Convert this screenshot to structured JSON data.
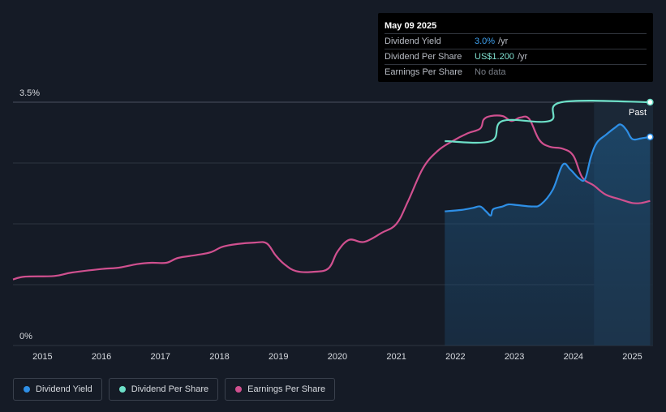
{
  "tooltip": {
    "date": "May 09 2025",
    "rows": [
      {
        "label": "Dividend Yield",
        "value": "3.0%",
        "unit": "/yr"
      },
      {
        "label": "Dividend Per Share",
        "value": "US$1.200",
        "unit": "/yr"
      },
      {
        "label": "Earnings Per Share",
        "value": "No data",
        "unit": ""
      }
    ]
  },
  "past_label": "Past",
  "legend": [
    {
      "label": "Dividend Yield",
      "color": "#2e8fe6"
    },
    {
      "label": "Dividend Per Share",
      "color": "#6de0c8"
    },
    {
      "label": "Earnings Per Share",
      "color": "#d0508f"
    }
  ],
  "colors": {
    "background": "#151b26",
    "dividend_yield": "#2e8fe6",
    "dividend_per_share": "#6de0c8",
    "earnings_per_share": "#d0508f",
    "gridline": "#2d3440"
  },
  "chart_data": {
    "type": "line",
    "x_ticks": [
      "2015",
      "2016",
      "2017",
      "2018",
      "2019",
      "2020",
      "2021",
      "2022",
      "2023",
      "2024",
      "2025"
    ],
    "y_tick_labels": [
      "3.5%",
      "0%"
    ],
    "ylim": [
      0,
      3.5
    ],
    "xlim": [
      2014.5,
      2025.35
    ],
    "grid": true,
    "legend_position": "bottom-left",
    "highlight": {
      "label": "Past",
      "from": 2024.35,
      "to": 2025.35
    },
    "series": [
      {
        "name": "Dividend Yield",
        "unit": "%",
        "area": true,
        "points": [
          [
            2021.82,
            1.93
          ],
          [
            2022.1,
            1.95
          ],
          [
            2022.3,
            1.98
          ],
          [
            2022.42,
            2.0
          ],
          [
            2022.52,
            1.93
          ],
          [
            2022.6,
            1.87
          ],
          [
            2022.64,
            1.96
          ],
          [
            2022.8,
            2.0
          ],
          [
            2022.9,
            2.03
          ],
          [
            2023.05,
            2.02
          ],
          [
            2023.3,
            2.0
          ],
          [
            2023.45,
            2.03
          ],
          [
            2023.65,
            2.24
          ],
          [
            2023.82,
            2.6
          ],
          [
            2023.95,
            2.53
          ],
          [
            2024.1,
            2.4
          ],
          [
            2024.2,
            2.4
          ],
          [
            2024.3,
            2.72
          ],
          [
            2024.4,
            2.92
          ],
          [
            2024.55,
            3.03
          ],
          [
            2024.7,
            3.13
          ],
          [
            2024.8,
            3.18
          ],
          [
            2024.9,
            3.1
          ],
          [
            2025.0,
            2.97
          ],
          [
            2025.15,
            2.98
          ],
          [
            2025.3,
            3.0
          ]
        ]
      },
      {
        "name": "Dividend Per Share",
        "unit": "US$",
        "points": [
          [
            2021.82,
            2.94
          ],
          [
            2022.6,
            2.94
          ],
          [
            2022.8,
            3.23
          ],
          [
            2023.6,
            3.23
          ],
          [
            2023.8,
            3.5
          ],
          [
            2025.3,
            3.5
          ]
        ]
      },
      {
        "name": "Earnings Per Share",
        "unit": "US$",
        "points": [
          [
            2014.5,
            0.95
          ],
          [
            2014.7,
            0.99
          ],
          [
            2015.2,
            1.0
          ],
          [
            2015.5,
            1.05
          ],
          [
            2016.0,
            1.1
          ],
          [
            2016.3,
            1.12
          ],
          [
            2016.6,
            1.17
          ],
          [
            2016.85,
            1.19
          ],
          [
            2017.1,
            1.19
          ],
          [
            2017.3,
            1.26
          ],
          [
            2017.6,
            1.3
          ],
          [
            2017.85,
            1.34
          ],
          [
            2018.05,
            1.42
          ],
          [
            2018.3,
            1.46
          ],
          [
            2018.6,
            1.48
          ],
          [
            2018.8,
            1.47
          ],
          [
            2018.95,
            1.3
          ],
          [
            2019.1,
            1.17
          ],
          [
            2019.3,
            1.07
          ],
          [
            2019.6,
            1.06
          ],
          [
            2019.85,
            1.11
          ],
          [
            2020.0,
            1.35
          ],
          [
            2020.2,
            1.52
          ],
          [
            2020.45,
            1.49
          ],
          [
            2020.75,
            1.62
          ],
          [
            2021.0,
            1.75
          ],
          [
            2021.2,
            2.08
          ],
          [
            2021.45,
            2.55
          ],
          [
            2021.7,
            2.8
          ],
          [
            2021.95,
            2.94
          ],
          [
            2022.2,
            3.05
          ],
          [
            2022.42,
            3.12
          ],
          [
            2022.48,
            3.25
          ],
          [
            2022.6,
            3.3
          ],
          [
            2022.8,
            3.3
          ],
          [
            2022.95,
            3.23
          ],
          [
            2023.1,
            3.28
          ],
          [
            2023.25,
            3.26
          ],
          [
            2023.42,
            2.96
          ],
          [
            2023.6,
            2.86
          ],
          [
            2023.82,
            2.83
          ],
          [
            2024.0,
            2.73
          ],
          [
            2024.15,
            2.42
          ],
          [
            2024.35,
            2.3
          ],
          [
            2024.55,
            2.17
          ],
          [
            2024.8,
            2.1
          ],
          [
            2025.0,
            2.05
          ],
          [
            2025.15,
            2.05
          ],
          [
            2025.3,
            2.08
          ]
        ]
      }
    ]
  }
}
